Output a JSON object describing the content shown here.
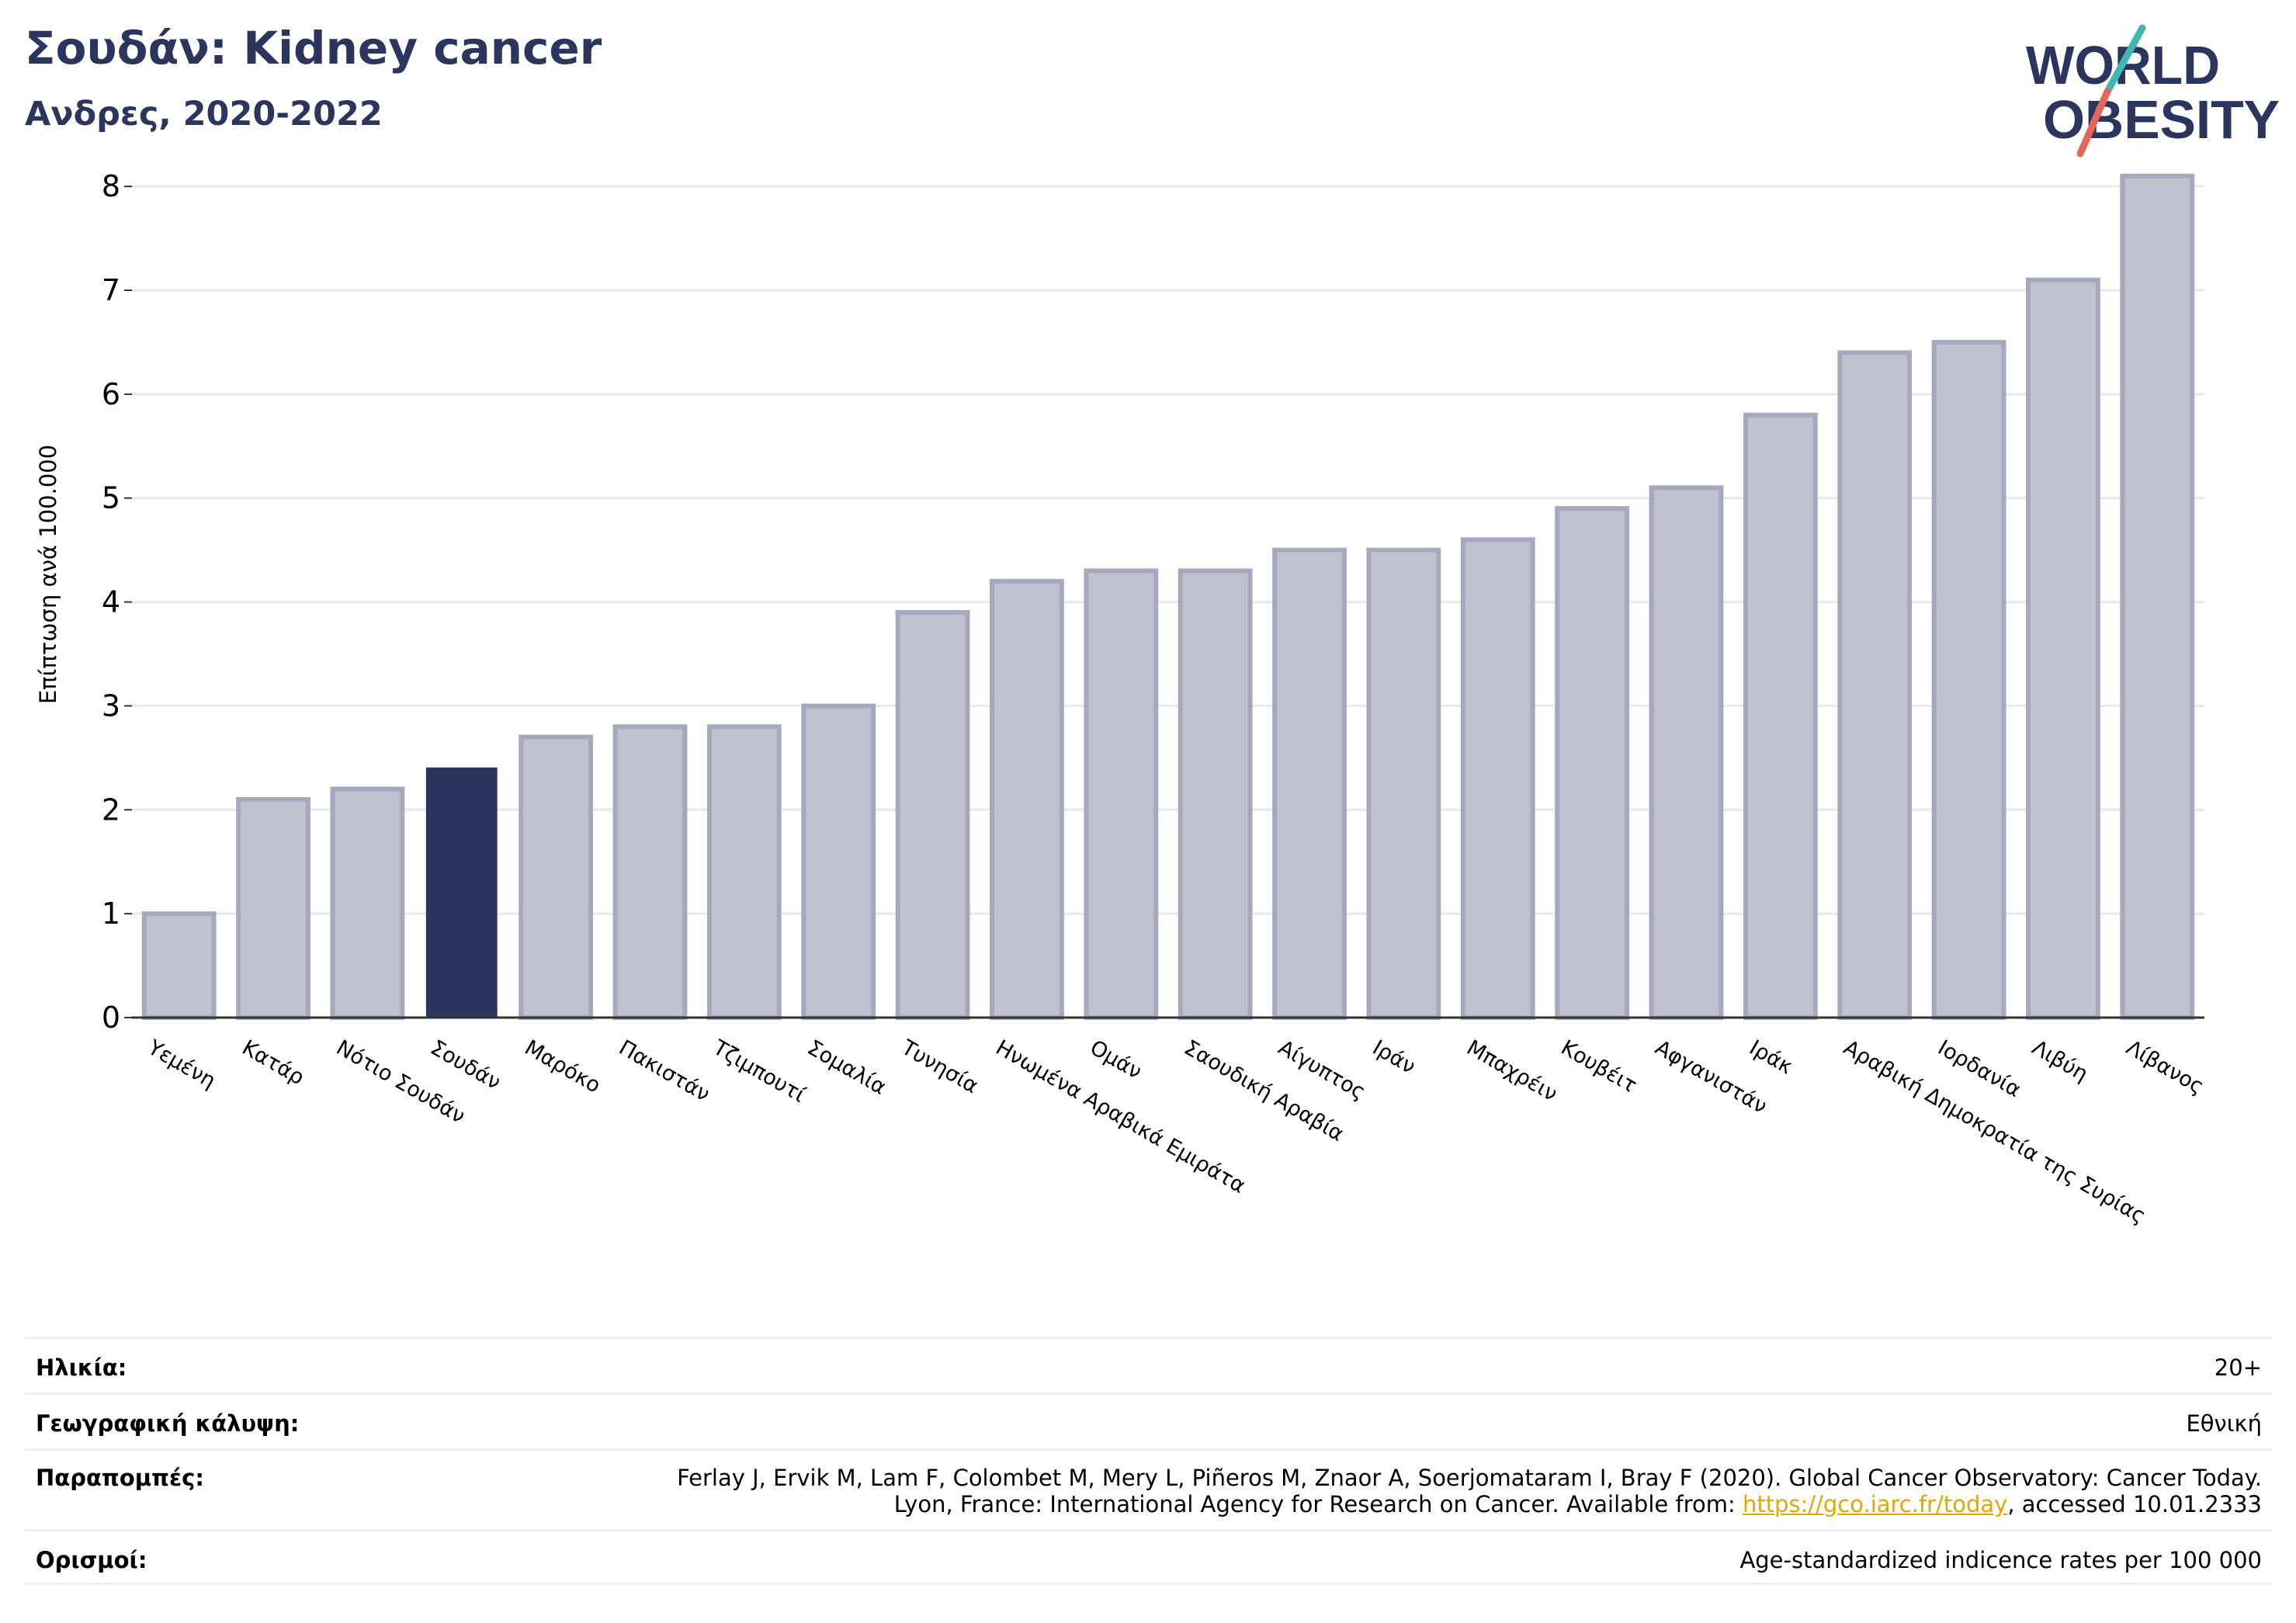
{
  "header": {
    "title": "Σουδάν: Kidney cancer",
    "subtitle": "Ανδρες, 2020-2022"
  },
  "logo": {
    "line1": "WORLD",
    "line2": "OBESITY",
    "colors": {
      "text": "#2c355e",
      "slash_top": "#3fb8b0",
      "slash_bottom": "#e4675a"
    }
  },
  "chart_data": {
    "type": "bar",
    "title": "Σουδάν: Kidney cancer",
    "subtitle": "Ανδρες, 2020-2022",
    "ylabel": "Επίπτωση ανά 100.000",
    "ylim": [
      0,
      8.3
    ],
    "yticks": [
      0,
      1,
      2,
      3,
      4,
      5,
      6,
      7,
      8
    ],
    "grid": true,
    "categories": [
      "Υεμένη",
      "Κατάρ",
      "Νότιο Σουδάν",
      "Σουδάν",
      "Μαρόκο",
      "Πακιστάν",
      "Τζιμπουτί",
      "Σομαλία",
      "Τυνησία",
      "Ηνωμένα Αραβικά Εμιράτα",
      "Ομάν",
      "Σαουδική Αραβία",
      "Αίγυπτος",
      "Ιράν",
      "Μπαχρέιν",
      "Κουβέιτ",
      "Αφγανιστάν",
      "Ιράκ",
      "Αραβική Δημοκρατία της Συρίας",
      "Ιορδανία",
      "Λιβύη",
      "Λίβανος"
    ],
    "values": [
      1.0,
      2.1,
      2.2,
      2.4,
      2.7,
      2.8,
      2.8,
      3.0,
      3.9,
      4.2,
      4.3,
      4.3,
      4.5,
      4.5,
      4.6,
      4.9,
      5.1,
      5.8,
      6.4,
      6.5,
      7.1,
      8.1
    ],
    "highlight": "Σουδάν",
    "colors": {
      "bar": "#bfc1cf",
      "bar_border": "#a5a9be",
      "highlight": "#2c355e",
      "grid": "#e6e8ee",
      "axis": "#333333"
    }
  },
  "meta": [
    {
      "label": "Ηλικία:",
      "value": "20+"
    },
    {
      "label": "Γεωγραφική κάλυψη:",
      "value": "Εθνική"
    },
    {
      "label": "Παραπομπές:",
      "line1": "Ferlay J, Ervik M, Lam F, Colombet M, Mery L, Piñeros M, Znaor A, Soerjomataram I, Bray F (2020). Global Cancer Observatory: Cancer Today.",
      "line2_pre": "Lyon, France: International Agency for Research on Cancer. Available from: ",
      "link": "https://gco.iarc.fr/today",
      "line2_post": ", accessed 10.01.2333"
    },
    {
      "label": "Ορισμοί:",
      "value": "Age-standardized indicence rates per 100 000"
    }
  ]
}
